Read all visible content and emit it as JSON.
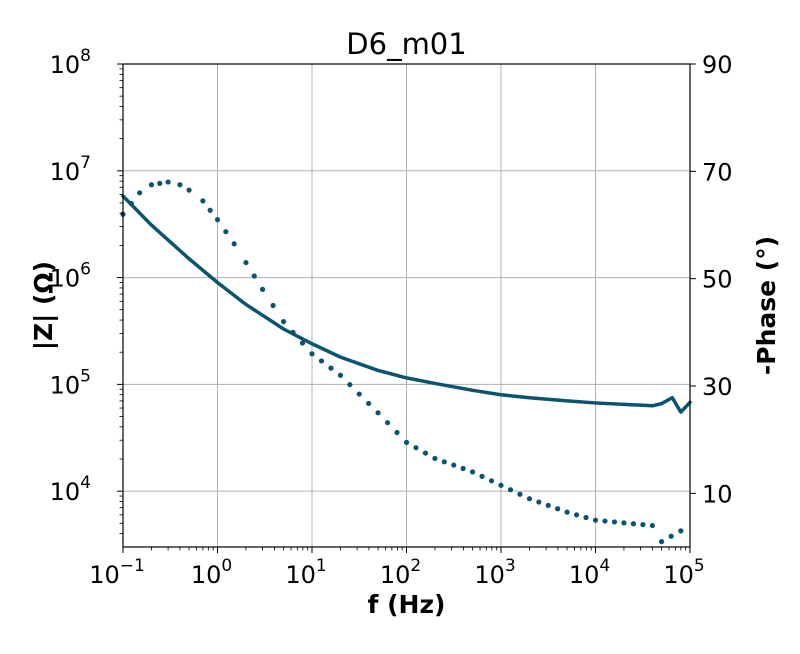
{
  "chart_data": {
    "type": "line",
    "title": "D6_m01",
    "xlabel": "f (Hz)",
    "ylabel": "|Z| (Ω)",
    "y2label": "-Phase (°)",
    "xscale": "log",
    "yscale": "log",
    "xlim": [
      0.1,
      100000
    ],
    "ylim": [
      3000,
      100000000
    ],
    "y2lim": [
      0,
      90
    ],
    "grid": true,
    "color": "#0a5470",
    "x_ticks": [
      {
        "base": "10",
        "exp": "−1",
        "value": 0.1
      },
      {
        "base": "10",
        "exp": "0",
        "value": 1
      },
      {
        "base": "10",
        "exp": "1",
        "value": 10
      },
      {
        "base": "10",
        "exp": "2",
        "value": 100
      },
      {
        "base": "10",
        "exp": "3",
        "value": 1000
      },
      {
        "base": "10",
        "exp": "4",
        "value": 10000
      },
      {
        "base": "10",
        "exp": "5",
        "value": 100000
      }
    ],
    "y_ticks": [
      {
        "base": "10",
        "exp": "4",
        "value": 10000
      },
      {
        "base": "10",
        "exp": "5",
        "value": 100000
      },
      {
        "base": "10",
        "exp": "6",
        "value": 1000000
      },
      {
        "base": "10",
        "exp": "7",
        "value": 10000000
      },
      {
        "base": "10",
        "exp": "8",
        "value": 100000000
      }
    ],
    "y2_ticks": [
      {
        "label": "10",
        "value": 10
      },
      {
        "label": "30",
        "value": 30
      },
      {
        "label": "50",
        "value": 50
      },
      {
        "label": "70",
        "value": 70
      },
      {
        "label": "90",
        "value": 90
      }
    ],
    "series": [
      {
        "axis": "left",
        "style": "solid",
        "x": [
          0.1,
          0.2,
          0.5,
          1,
          2,
          5,
          10,
          20,
          50,
          100,
          200,
          500,
          1000,
          2000,
          5000,
          10000,
          20000,
          40000,
          50000,
          65000,
          80000,
          100000
        ],
        "y": [
          5800000,
          3100000,
          1500000,
          900000,
          560000,
          330000,
          240000,
          180000,
          135000,
          115000,
          102000,
          88000,
          80000,
          75000,
          70000,
          67000,
          65000,
          63000,
          66000,
          75000,
          55000,
          68000
        ]
      },
      {
        "axis": "right",
        "style": "dotted",
        "x": [
          0.1,
          0.15,
          0.2,
          0.3,
          0.4,
          0.5,
          0.7,
          1,
          1.5,
          2,
          3,
          5,
          10,
          20,
          50,
          100,
          200,
          500,
          1000,
          2000,
          5000,
          10000,
          20000,
          40000,
          50000,
          80000
        ],
        "y": [
          62,
          66,
          67.5,
          68,
          67.5,
          66.5,
          64.5,
          61,
          56.5,
          53,
          48,
          42,
          36,
          32,
          25,
          19.5,
          16.5,
          14,
          11.5,
          9,
          6.5,
          5,
          4.5,
          4,
          1,
          3
        ]
      }
    ]
  }
}
